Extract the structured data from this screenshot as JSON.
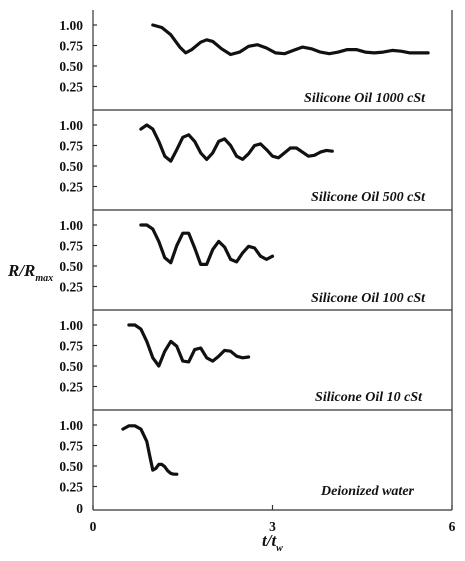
{
  "chart_data": {
    "type": "line",
    "xlabel": {
      "main": "t/t",
      "sub": "w"
    },
    "ylabel": {
      "main": "R/R",
      "sub": "max"
    },
    "xlim": [
      0,
      6
    ],
    "xticks": [
      0,
      3,
      6
    ],
    "ylim": [
      0,
      1.0
    ],
    "yticks": [
      "1.00",
      "0.75",
      "0.50",
      "0.25"
    ],
    "bottom_zero_label": "0",
    "grid": false,
    "legend": "none",
    "panels": [
      {
        "label": "Silicone Oil 1000 cSt",
        "x": [
          1.0,
          1.15,
          1.3,
          1.45,
          1.55,
          1.65,
          1.8,
          1.9,
          2.0,
          2.15,
          2.3,
          2.45,
          2.6,
          2.75,
          2.9,
          3.05,
          3.2,
          3.35,
          3.5,
          3.65,
          3.8,
          3.95,
          4.1,
          4.25,
          4.4,
          4.55,
          4.7,
          4.85,
          5.0,
          5.15,
          5.3,
          5.45,
          5.6
        ],
        "y": [
          1.0,
          0.97,
          0.88,
          0.73,
          0.66,
          0.7,
          0.79,
          0.82,
          0.8,
          0.71,
          0.64,
          0.67,
          0.74,
          0.76,
          0.72,
          0.66,
          0.65,
          0.69,
          0.73,
          0.71,
          0.67,
          0.65,
          0.67,
          0.7,
          0.7,
          0.67,
          0.66,
          0.67,
          0.69,
          0.68,
          0.66,
          0.66,
          0.66
        ]
      },
      {
        "label": "Silicone Oil 500 cSt",
        "x": [
          0.8,
          0.9,
          1.0,
          1.1,
          1.2,
          1.3,
          1.4,
          1.5,
          1.6,
          1.7,
          1.8,
          1.9,
          2.0,
          2.1,
          2.2,
          2.3,
          2.4,
          2.5,
          2.6,
          2.7,
          2.8,
          2.9,
          3.0,
          3.1,
          3.2,
          3.3,
          3.4,
          3.5,
          3.6,
          3.7,
          3.8,
          3.9,
          4.0
        ],
        "y": [
          0.95,
          1.0,
          0.95,
          0.8,
          0.62,
          0.56,
          0.7,
          0.85,
          0.88,
          0.8,
          0.66,
          0.58,
          0.66,
          0.8,
          0.83,
          0.75,
          0.62,
          0.58,
          0.65,
          0.75,
          0.77,
          0.7,
          0.62,
          0.6,
          0.66,
          0.72,
          0.72,
          0.67,
          0.62,
          0.63,
          0.67,
          0.69,
          0.68
        ]
      },
      {
        "label": "Silicone Oil 100 cSt",
        "x": [
          0.8,
          0.9,
          1.0,
          1.1,
          1.2,
          1.3,
          1.4,
          1.5,
          1.6,
          1.7,
          1.8,
          1.9,
          2.0,
          2.1,
          2.2,
          2.3,
          2.4,
          2.5,
          2.6,
          2.7,
          2.8,
          2.9,
          3.0
        ],
        "y": [
          1.0,
          1.0,
          0.95,
          0.8,
          0.6,
          0.54,
          0.75,
          0.9,
          0.9,
          0.72,
          0.52,
          0.52,
          0.7,
          0.8,
          0.73,
          0.58,
          0.55,
          0.66,
          0.74,
          0.72,
          0.62,
          0.58,
          0.62
        ]
      },
      {
        "label": "Silicone Oil 10 cSt",
        "x": [
          0.6,
          0.7,
          0.8,
          0.9,
          1.0,
          1.1,
          1.2,
          1.3,
          1.4,
          1.5,
          1.6,
          1.7,
          1.8,
          1.9,
          2.0,
          2.1,
          2.2,
          2.3,
          2.4,
          2.5,
          2.6
        ],
        "y": [
          1.0,
          1.0,
          0.95,
          0.8,
          0.6,
          0.5,
          0.68,
          0.8,
          0.74,
          0.56,
          0.55,
          0.7,
          0.72,
          0.6,
          0.56,
          0.62,
          0.69,
          0.68,
          0.62,
          0.6,
          0.61
        ]
      },
      {
        "label": "Deionized water",
        "x": [
          0.5,
          0.6,
          0.7,
          0.8,
          0.9,
          0.95,
          1.0,
          1.05,
          1.1,
          1.15,
          1.2,
          1.25,
          1.3,
          1.35,
          1.4
        ],
        "y": [
          0.95,
          0.99,
          0.99,
          0.95,
          0.8,
          0.62,
          0.45,
          0.47,
          0.52,
          0.52,
          0.49,
          0.44,
          0.41,
          0.4,
          0.4
        ]
      }
    ]
  }
}
